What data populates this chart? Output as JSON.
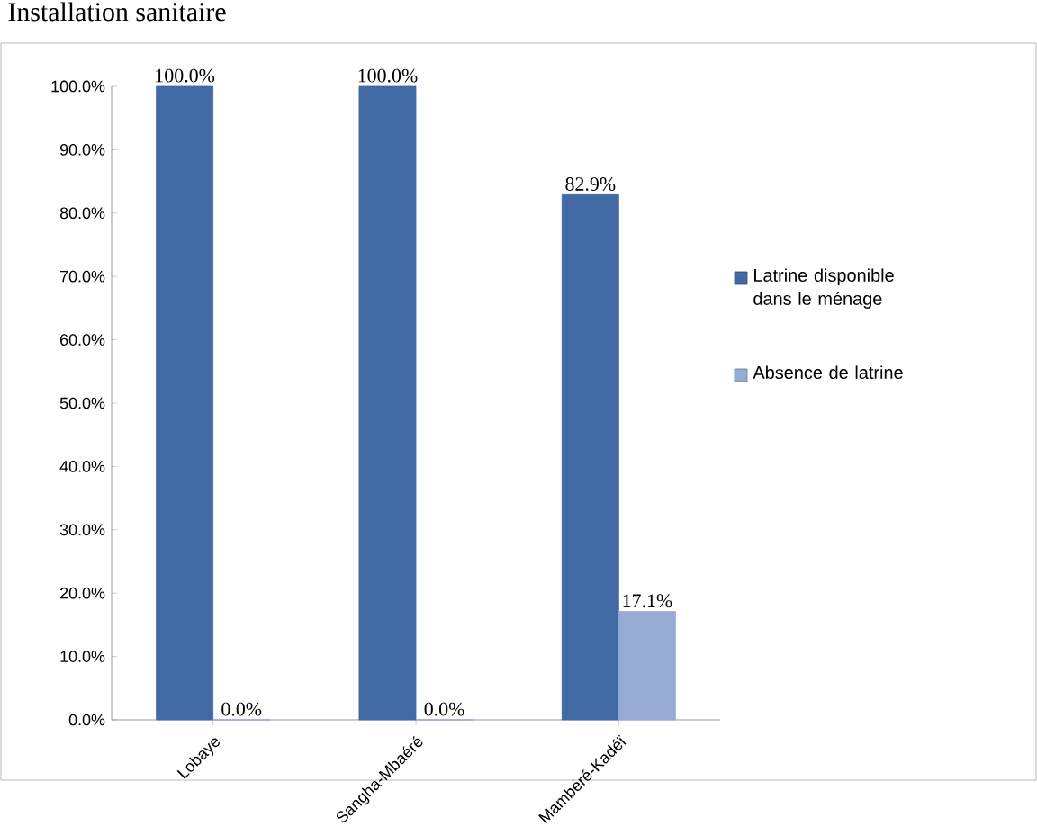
{
  "chart_data": {
    "type": "bar",
    "title": "Installation sanitaire",
    "categories": [
      "Lobaye",
      "Sangha-Mbaéré",
      "Mambéré-Kadéï"
    ],
    "series": [
      {
        "name": "Latrine disponible dans le ménage",
        "color": "#4169a4",
        "values": [
          100.0,
          100.0,
          82.9
        ],
        "value_labels": [
          "100.0%",
          "100.0%",
          "82.9%"
        ]
      },
      {
        "name": "Absence de latrine",
        "color": "#98abd4",
        "values": [
          0.0,
          0.0,
          17.1
        ],
        "value_labels": [
          "0.0%",
          "0.0%",
          "17.1%"
        ]
      }
    ],
    "ylim": [
      0,
      100
    ],
    "yticks": [
      {
        "value": 0,
        "label": "0.0%"
      },
      {
        "value": 10,
        "label": "10.0%"
      },
      {
        "value": 20,
        "label": "20.0%"
      },
      {
        "value": 30,
        "label": "30.0%"
      },
      {
        "value": 40,
        "label": "40.0%"
      },
      {
        "value": 50,
        "label": "50.0%"
      },
      {
        "value": 60,
        "label": "60.0%"
      },
      {
        "value": 70,
        "label": "70.0%"
      },
      {
        "value": 80,
        "label": "80.0%"
      },
      {
        "value": 90,
        "label": "90.0%"
      },
      {
        "value": 100,
        "label": "100.0%"
      }
    ],
    "legend": "right"
  }
}
